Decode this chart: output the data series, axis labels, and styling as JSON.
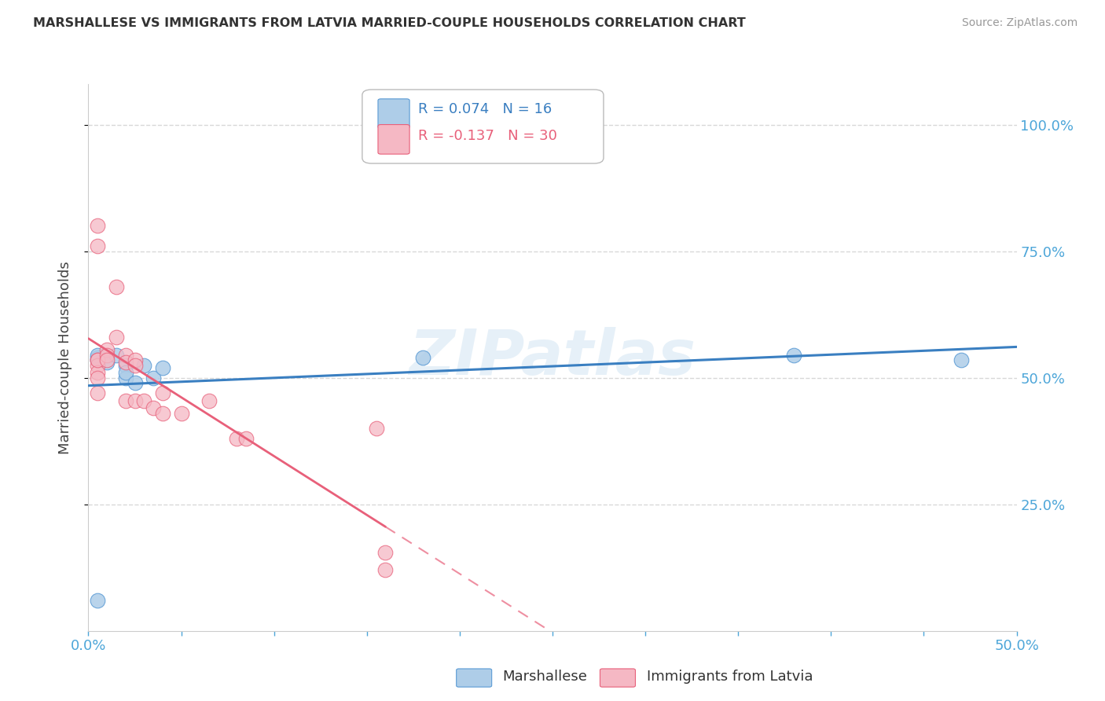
{
  "title": "MARSHALLESE VS IMMIGRANTS FROM LATVIA MARRIED-COUPLE HOUSEHOLDS CORRELATION CHART",
  "source": "Source: ZipAtlas.com",
  "ylabel": "Married-couple Households",
  "legend_blue_label": "Marshallese",
  "legend_pink_label": "Immigrants from Latvia",
  "R_blue": 0.074,
  "N_blue": 16,
  "R_pink": -0.137,
  "N_pink": 30,
  "blue_color": "#aecde8",
  "pink_color": "#f5b8c4",
  "blue_edge_color": "#5b9bd5",
  "pink_edge_color": "#e8607a",
  "blue_line_color": "#3a7fc1",
  "pink_line_color": "#e8607a",
  "watermark": "ZIPatlas",
  "blue_points_x": [
    0.005,
    0.005,
    0.005,
    0.01,
    0.015,
    0.02,
    0.02,
    0.02,
    0.025,
    0.03,
    0.035,
    0.04,
    0.18,
    0.38,
    0.47,
    0.005
  ],
  "blue_points_y": [
    0.535,
    0.54,
    0.545,
    0.53,
    0.545,
    0.525,
    0.5,
    0.51,
    0.49,
    0.525,
    0.5,
    0.52,
    0.54,
    0.545,
    0.535,
    0.06
  ],
  "pink_points_x": [
    0.005,
    0.005,
    0.005,
    0.005,
    0.005,
    0.005,
    0.005,
    0.005,
    0.01,
    0.01,
    0.01,
    0.015,
    0.015,
    0.02,
    0.02,
    0.02,
    0.025,
    0.025,
    0.025,
    0.03,
    0.035,
    0.04,
    0.04,
    0.05,
    0.065,
    0.08,
    0.085,
    0.155,
    0.16,
    0.16
  ],
  "pink_points_y": [
    0.535,
    0.525,
    0.51,
    0.5,
    0.47,
    0.535,
    0.76,
    0.8,
    0.555,
    0.545,
    0.535,
    0.68,
    0.58,
    0.545,
    0.53,
    0.455,
    0.535,
    0.525,
    0.455,
    0.455,
    0.44,
    0.47,
    0.43,
    0.43,
    0.455,
    0.38,
    0.38,
    0.4,
    0.155,
    0.12
  ],
  "xlim": [
    0.0,
    0.5
  ],
  "ylim": [
    0.0,
    1.08
  ],
  "yticks": [
    0.25,
    0.5,
    0.75,
    1.0
  ],
  "ytick_labels": [
    "25.0%",
    "50.0%",
    "75.0%",
    "100.0%"
  ],
  "xtick_positions": [
    0.0,
    0.05,
    0.1,
    0.15,
    0.2,
    0.25,
    0.3,
    0.35,
    0.4,
    0.45,
    0.5
  ],
  "background_color": "#ffffff",
  "grid_color": "#d8d8d8",
  "axis_color": "#cccccc",
  "tick_color": "#4da6d9",
  "title_color": "#333333",
  "source_color": "#999999"
}
